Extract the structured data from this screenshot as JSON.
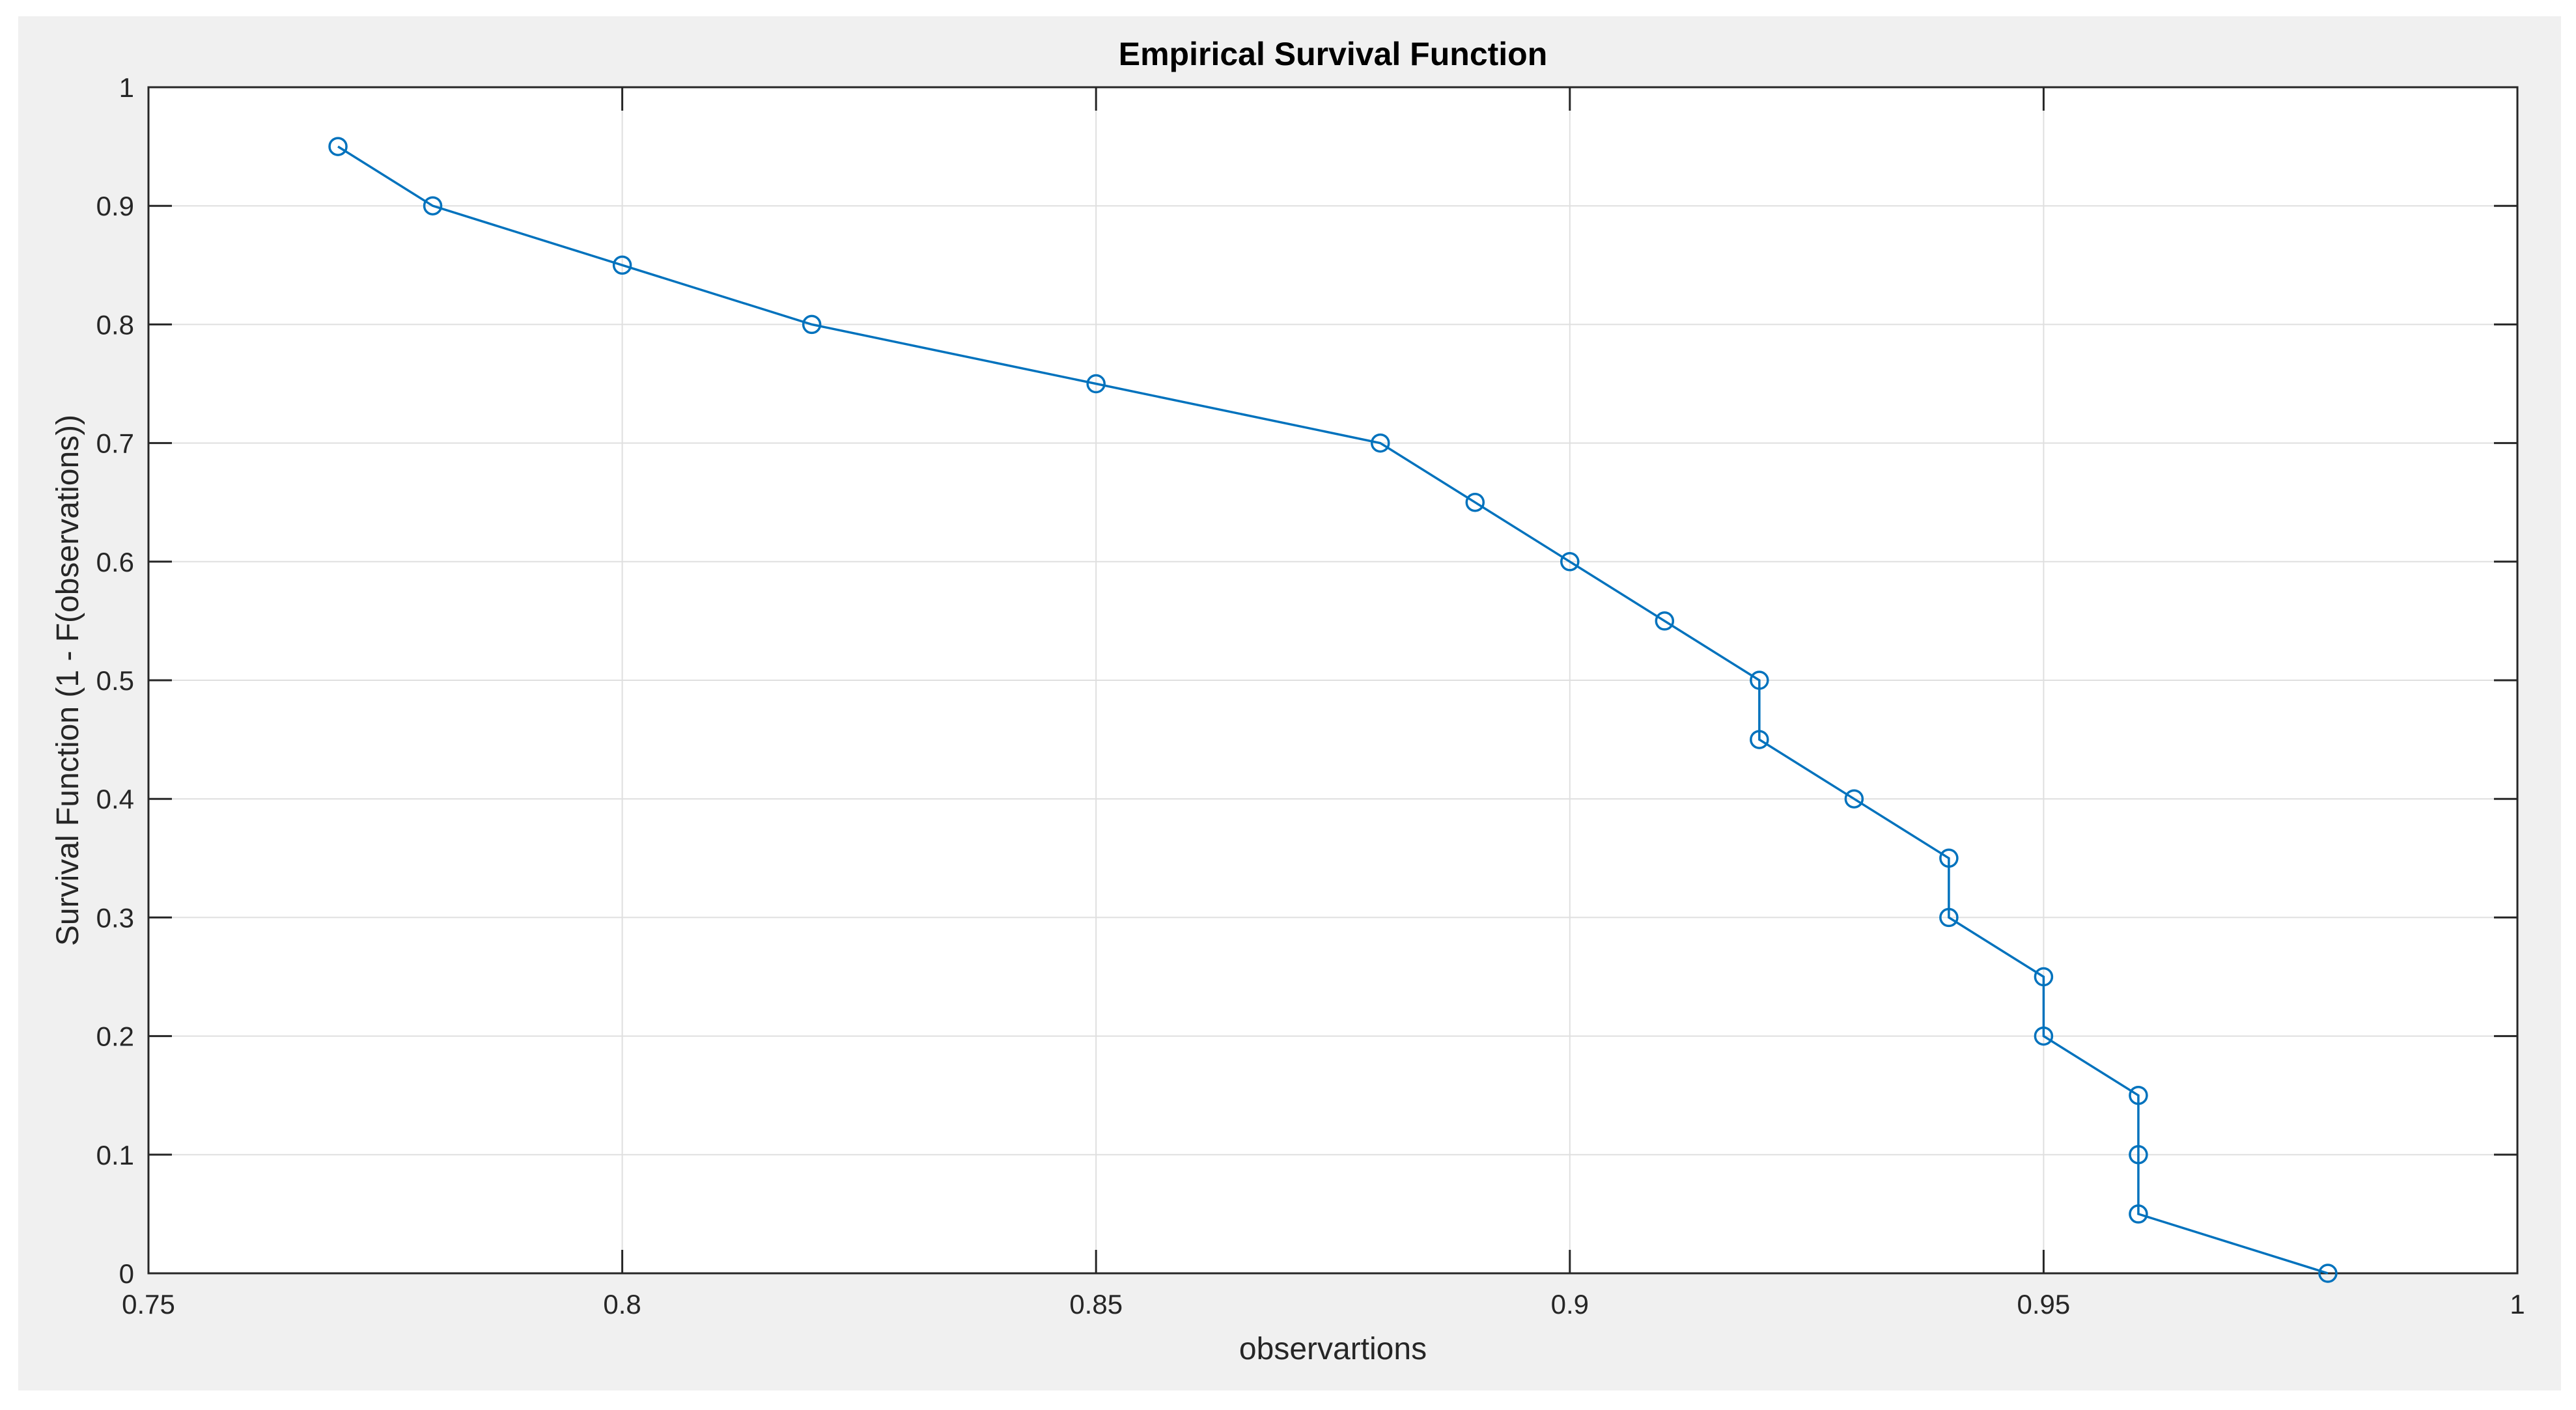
{
  "colors": {
    "figure_background": "#f0f0f0",
    "axes_background": "#ffffff",
    "series_color": "#0072bd",
    "grid_color": "#dfdfdf",
    "axis_color": "#262626"
  },
  "chart_data": {
    "type": "line",
    "title": "Empirical Survival Function",
    "xlabel": "observartions",
    "ylabel": "Survival Function (1 - F(observations))",
    "xlim": [
      0.75,
      1
    ],
    "ylim": [
      0,
      1
    ],
    "xticks": [
      0.75,
      0.8,
      0.85,
      0.9,
      0.95,
      1
    ],
    "xtick_labels": [
      "0.75",
      "0.8",
      "0.85",
      "0.9",
      "0.95",
      "1"
    ],
    "yticks": [
      0,
      0.1,
      0.2,
      0.3,
      0.4,
      0.5,
      0.6,
      0.7,
      0.8,
      0.9,
      1
    ],
    "ytick_labels": [
      "0",
      "0.1",
      "0.2",
      "0.3",
      "0.4",
      "0.5",
      "0.6",
      "0.7",
      "0.8",
      "0.9",
      "1"
    ],
    "grid": true,
    "marker": "circle",
    "series": [
      {
        "x": [
          0.77,
          0.78,
          0.8,
          0.82,
          0.85,
          0.88,
          0.89,
          0.9,
          0.91,
          0.92,
          0.92,
          0.93,
          0.94,
          0.94,
          0.95,
          0.95,
          0.96,
          0.96,
          0.96,
          0.98
        ],
        "y": [
          0.95,
          0.9,
          0.85,
          0.8,
          0.75,
          0.7,
          0.65,
          0.6,
          0.55,
          0.5,
          0.45,
          0.4,
          0.35,
          0.3,
          0.25,
          0.2,
          0.15,
          0.1,
          0.05,
          0.0
        ]
      }
    ]
  }
}
